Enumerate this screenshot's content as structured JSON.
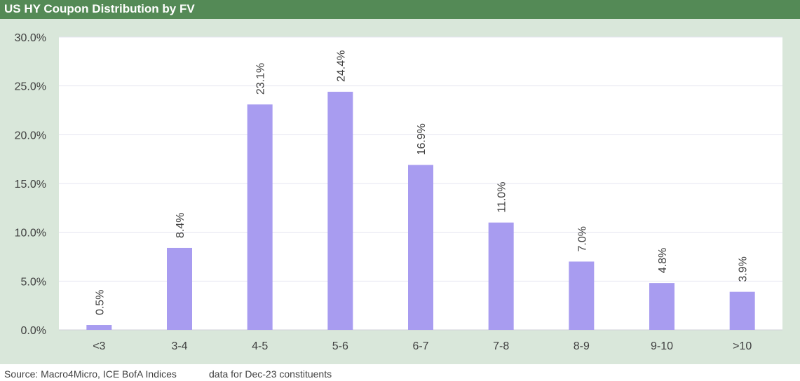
{
  "header": {
    "title": "US HY Coupon Distribution by FV"
  },
  "footer": {
    "source": "Source: Macro4Micro, ICE BofA Indices",
    "note": "data for Dec-23 constituents"
  },
  "colors": {
    "title_bar": "#548a56",
    "background": "#d9e7da",
    "plot": "#ffffff",
    "bar": "#a89cf0",
    "grid": "#e4e4f0"
  },
  "chart_data": {
    "type": "bar",
    "title": "US HY Coupon Distribution by FV",
    "categories": [
      "<3",
      "3-4",
      "4-5",
      "5-6",
      "6-7",
      "7-8",
      "8-9",
      "9-10",
      ">10"
    ],
    "values": [
      0.5,
      8.4,
      23.1,
      24.4,
      16.9,
      11.0,
      7.0,
      4.8,
      3.9
    ],
    "value_labels": [
      "0.5%",
      "8.4%",
      "23.1%",
      "24.4%",
      "16.9%",
      "11.0%",
      "7.0%",
      "4.8%",
      "3.9%"
    ],
    "ylim": [
      0,
      30
    ],
    "yticks": [
      0,
      5,
      10,
      15,
      20,
      25,
      30
    ],
    "ytick_labels": [
      "0.0%",
      "5.0%",
      "10.0%",
      "15.0%",
      "20.0%",
      "25.0%",
      "30.0%"
    ],
    "grid": true,
    "legend": "none"
  }
}
